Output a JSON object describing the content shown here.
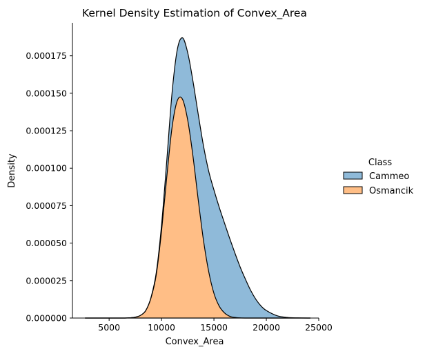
{
  "chart_data": {
    "type": "area",
    "stacked": true,
    "title": "Kernel Density Estimation of Convex_Area",
    "xlabel": "Convex_Area",
    "ylabel": "Density",
    "xlim": [
      1500,
      25000
    ],
    "ylim": [
      0,
      0.000197
    ],
    "xticks": [
      5000,
      10000,
      15000,
      20000,
      25000
    ],
    "xtick_labels": [
      "5000",
      "10000",
      "15000",
      "20000",
      "25000"
    ],
    "yticks": [
      0,
      2.5e-05,
      5e-05,
      7.5e-05,
      0.0001,
      0.000125,
      0.00015,
      0.000175
    ],
    "ytick_labels": [
      "0.000000",
      "0.000025",
      "0.000050",
      "0.000075",
      "0.000100",
      "0.000125",
      "0.000150",
      "0.000175"
    ],
    "grid": false,
    "legend": {
      "title": "Class",
      "placement": "right"
    },
    "x": [
      2700,
      3500,
      4500,
      5500,
      6500,
      7000,
      7500,
      8000,
      8500,
      9000,
      9500,
      10000,
      10500,
      11000,
      11500,
      12000,
      12500,
      13000,
      13500,
      14000,
      14500,
      15000,
      15500,
      16000,
      16500,
      17000,
      17500,
      18000,
      18500,
      19000,
      19500,
      20000,
      21000,
      22000,
      23000,
      24200
    ],
    "series": [
      {
        "name": "Osmancik",
        "color": "#ffbe86",
        "values": [
          0,
          0,
          0,
          0,
          0,
          2e-07,
          6e-07,
          1.8e-06,
          5e-06,
          1.35e-05,
          2.9e-05,
          5.8e-05,
          9.4e-05,
          0.000127,
          0.000145,
          0.000146,
          0.000132,
          0.000108,
          7.9e-05,
          5.2e-05,
          3.1e-05,
          1.65e-05,
          8e-06,
          3.5e-06,
          1.2e-06,
          4e-07,
          1e-07,
          0,
          0,
          0,
          0,
          0,
          0,
          0,
          0,
          0
        ]
      },
      {
        "name": "Cammeo",
        "color": "#8fbad9",
        "values": [
          0,
          0,
          0,
          0,
          0,
          0,
          0,
          0,
          1e-07,
          4e-07,
          1.4e-06,
          4e-06,
          1.1e-05,
          2.3e-05,
          3.4e-05,
          4.1e-05,
          4.5e-05,
          5e-05,
          5.7e-05,
          6.3e-05,
          6.7e-05,
          6.9e-05,
          6.6e-05,
          6e-05,
          5.2e-05,
          4.3e-05,
          3.4e-05,
          2.6e-05,
          1.85e-05,
          1.25e-05,
          8e-06,
          5e-06,
          1.6e-06,
          4e-07,
          1e-07,
          0
        ]
      }
    ]
  }
}
